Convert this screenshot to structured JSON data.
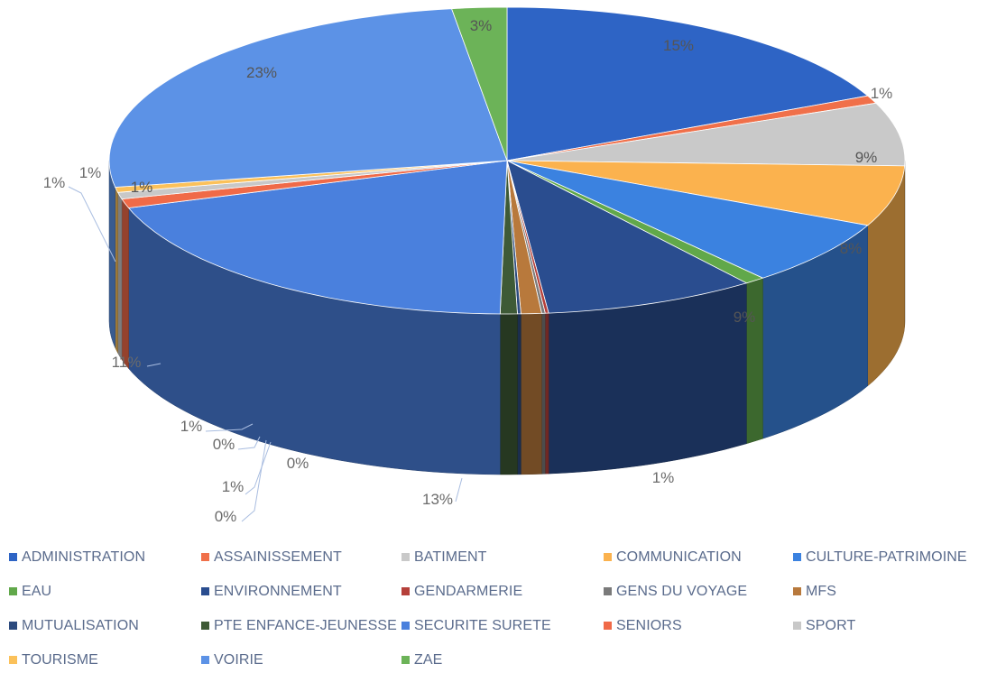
{
  "chart_data": {
    "type": "pie",
    "title": "",
    "style": "3d-tilted",
    "legend_position": "bottom",
    "categories": [
      "ADMINISTRATION",
      "ASSAINISSEMENT",
      "BATIMENT",
      "COMMUNICATION",
      "CULTURE-PATRIMOINE",
      "EAU",
      "ENVIRONNEMENT",
      "GENDARMERIE",
      "GENS DU VOYAGE",
      "MFS",
      "MUTUALISATION",
      "PTE ENFANCE-JEUNESSE",
      "SECURITE SURETE",
      "SENIORS",
      "SPORT",
      "TOURISME",
      "VOIRIE",
      "ZAE"
    ],
    "slices": [
      {
        "label": "ADMINISTRATION",
        "value": 15,
        "text": "15%",
        "color": "#2e64c5"
      },
      {
        "label": "ASSAINISSEMENT",
        "value": 1,
        "text": "1%",
        "color": "#f0704a"
      },
      {
        "label": "BATIMENT",
        "value": 9,
        "text": "9%",
        "color": "#c9c9c9"
      },
      {
        "label": "COMMUNICATION",
        "value": 8,
        "text": "8%",
        "color": "#fbb24e"
      },
      {
        "label": "CULTURE-PATRIMOINE",
        "value": 9,
        "text": "9%",
        "color": "#3b82e0"
      },
      {
        "label": "EAU",
        "value": 1,
        "text": "1%",
        "color": "#61a84a"
      },
      {
        "label": "ENVIRONNEMENT",
        "value": 13,
        "text": "13%",
        "color": "#2a4d8f"
      },
      {
        "label": "GENDARMERIE",
        "value": 0,
        "text": "0%",
        "color": "#b5403a"
      },
      {
        "label": "GENS DU VOYAGE",
        "value": 0,
        "text": "0%",
        "color": "#7a7a7a"
      },
      {
        "label": "MFS",
        "value": 1,
        "text": "1%",
        "color": "#b8793c"
      },
      {
        "label": "MUTUALISATION",
        "value": 0,
        "text": "0%",
        "color": "#2c4a7e"
      },
      {
        "label": "PTE ENFANCE-JEUNESSE",
        "value": 1,
        "text": "1%",
        "color": "#3e5a36"
      },
      {
        "label": "SECURITE SURETE",
        "value": 11,
        "text": "11%",
        "color": "#4a80dd"
      },
      {
        "label": "SENIORS",
        "value": 1,
        "text": "1%",
        "color": "#f06a48"
      },
      {
        "label": "SPORT",
        "value": 1,
        "text": "1%",
        "color": "#c8c8c8"
      },
      {
        "label": "TOURISME",
        "value": 1,
        "text": "1%",
        "color": "#fbc15a"
      },
      {
        "label": "VOIRIE",
        "value": 23,
        "text": "23%",
        "color": "#5c92e6"
      },
      {
        "label": "ZAE",
        "value": 3,
        "text": "3%",
        "color": "#6cb358"
      }
    ]
  },
  "legend": [
    {
      "label": "ADMINISTRATION",
      "color": "#2e64c5"
    },
    {
      "label": "ASSAINISSEMENT",
      "color": "#f0704a"
    },
    {
      "label": "BATIMENT",
      "color": "#c9c9c9"
    },
    {
      "label": "COMMUNICATION",
      "color": "#fbb24e"
    },
    {
      "label": "CULTURE-PATRIMOINE",
      "color": "#3b82e0"
    },
    {
      "label": "EAU",
      "color": "#61a84a"
    },
    {
      "label": "ENVIRONNEMENT",
      "color": "#2a4d8f"
    },
    {
      "label": "GENDARMERIE",
      "color": "#b5403a"
    },
    {
      "label": "GENS DU VOYAGE",
      "color": "#7a7a7a"
    },
    {
      "label": "MFS",
      "color": "#b8793c"
    },
    {
      "label": "MUTUALISATION",
      "color": "#2c4a7e"
    },
    {
      "label": "PTE ENFANCE-JEUNESSE",
      "color": "#3e5a36"
    },
    {
      "label": "SECURITE SURETE",
      "color": "#4a80dd"
    },
    {
      "label": "SENIORS",
      "color": "#f06a48"
    },
    {
      "label": "SPORT",
      "color": "#c8c8c8"
    },
    {
      "label": "TOURISME",
      "color": "#fbc15a"
    },
    {
      "label": "VOIRIE",
      "color": "#5c92e6"
    },
    {
      "label": "ZAE",
      "color": "#6cb358"
    }
  ]
}
